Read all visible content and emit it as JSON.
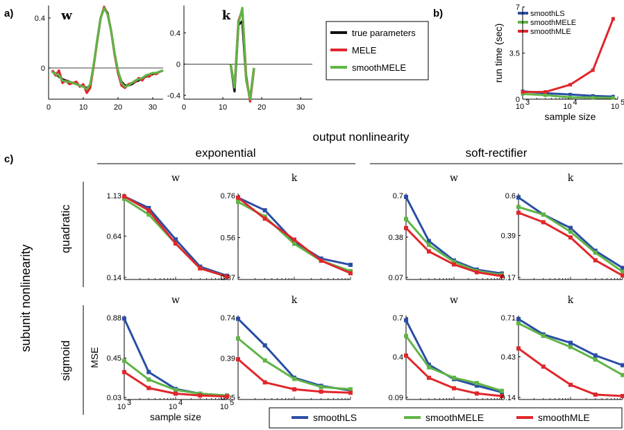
{
  "panel_labels": {
    "a": "a)",
    "b": "b)",
    "c": "c)"
  },
  "colors": {
    "smoothLS": "#2a4ea6",
    "smoothMELE": "#5fb446",
    "smoothMLE": "#e0262b",
    "MELE": "#e0262b",
    "true": "#111111"
  },
  "section_titles": {
    "output": "output nonlinearity",
    "exponential": "exponential",
    "softrect": "soft-rectifier",
    "subunit": "subunit nonlinearity",
    "quadratic": "quadratic",
    "sigmoid": "sigmoid"
  },
  "chart_data": [
    {
      "id": "a-w",
      "type": "line",
      "title": "w",
      "xlim": [
        0,
        33
      ],
      "ylim": [
        -0.25,
        0.5
      ],
      "xticks": [
        0,
        10,
        20,
        30
      ],
      "yticks": [
        0,
        0.4
      ],
      "ytick_labels": [
        "0",
        "0.4"
      ],
      "x": [
        1,
        2,
        3,
        4,
        5,
        6,
        7,
        8,
        9,
        10,
        11,
        12,
        13,
        14,
        15,
        16,
        17,
        18,
        19,
        20,
        21,
        22,
        23,
        24,
        25,
        26,
        27,
        28,
        29,
        30,
        31,
        32,
        33
      ],
      "series": [
        {
          "name": "true parameters",
          "values": [
            -0.02,
            -0.05,
            -0.07,
            -0.09,
            -0.1,
            -0.11,
            -0.12,
            -0.13,
            -0.14,
            -0.15,
            -0.16,
            -0.14,
            0.02,
            0.22,
            0.4,
            0.48,
            0.44,
            0.3,
            0.12,
            -0.03,
            -0.11,
            -0.14,
            -0.14,
            -0.13,
            -0.11,
            -0.1,
            -0.08,
            -0.07,
            -0.06,
            -0.05,
            -0.04,
            -0.03,
            -0.02
          ]
        },
        {
          "name": "MELE",
          "values": [
            -0.02,
            -0.06,
            -0.02,
            -0.12,
            -0.1,
            -0.13,
            -0.12,
            -0.11,
            -0.15,
            -0.13,
            -0.2,
            -0.16,
            0.02,
            0.21,
            0.4,
            0.49,
            0.43,
            0.3,
            0.11,
            -0.04,
            -0.14,
            -0.16,
            -0.13,
            -0.12,
            -0.11,
            -0.08,
            -0.1,
            -0.06,
            -0.07,
            -0.04,
            -0.05,
            -0.03,
            -0.02
          ]
        },
        {
          "name": "smoothMELE",
          "values": [
            -0.03,
            -0.05,
            -0.06,
            -0.1,
            -0.11,
            -0.11,
            -0.12,
            -0.13,
            -0.14,
            -0.15,
            -0.17,
            -0.13,
            0.03,
            0.22,
            0.4,
            0.48,
            0.43,
            0.3,
            0.12,
            -0.02,
            -0.12,
            -0.15,
            -0.14,
            -0.12,
            -0.1,
            -0.09,
            -0.08,
            -0.06,
            -0.05,
            -0.04,
            -0.04,
            -0.03,
            -0.02
          ]
        }
      ],
      "legend": {
        "entries": [
          "true parameters",
          "MELE",
          "smoothMELE"
        ]
      }
    },
    {
      "id": "a-k",
      "type": "line",
      "title": "k",
      "xlim": [
        0,
        33
      ],
      "ylim": [
        -0.45,
        0.75
      ],
      "xticks": [
        0,
        10,
        20,
        30
      ],
      "yticks": [
        -0.4,
        0,
        0.4
      ],
      "ytick_labels": [
        "-0.4",
        "0",
        "0.4"
      ],
      "x": [
        12,
        13,
        14,
        15,
        16,
        17,
        18
      ],
      "series": [
        {
          "name": "true parameters",
          "values": [
            0.0,
            -0.35,
            0.5,
            0.55,
            -0.2,
            -0.45,
            -0.05
          ]
        },
        {
          "name": "MELE",
          "values": [
            0.0,
            -0.3,
            0.55,
            0.7,
            -0.15,
            -0.48,
            -0.07
          ]
        },
        {
          "name": "smoothMELE",
          "values": [
            0.0,
            -0.3,
            0.52,
            0.72,
            -0.2,
            -0.45,
            -0.05
          ]
        }
      ]
    },
    {
      "id": "b",
      "type": "line",
      "xlabel": "sample size",
      "ylabel": "run time (sec)",
      "xscale": "log",
      "xlim": [
        1000,
        100000
      ],
      "ylim": [
        0,
        7
      ],
      "x": [
        1000,
        3000,
        10000,
        30000,
        80000
      ],
      "yticks": [
        0,
        3.5,
        7
      ],
      "ytick_labels": [
        "0",
        "3.5",
        "7"
      ],
      "series": [
        {
          "name": "smoothLS",
          "values": [
            0.6,
            0.45,
            0.35,
            0.25,
            0.2
          ]
        },
        {
          "name": "smoothMELE",
          "values": [
            0.4,
            0.3,
            0.15,
            0.12,
            0.1
          ]
        },
        {
          "name": "smoothMLE",
          "values": [
            0.55,
            0.55,
            1.1,
            2.2,
            6.1
          ]
        }
      ],
      "legend": {
        "entries": [
          "smoothLS",
          "smoothMELE",
          "smoothMLE"
        ],
        "placement": "top-left"
      }
    },
    {
      "id": "quad-exp-w",
      "type": "line",
      "title": "w",
      "xscale": "log",
      "x": [
        1000,
        3000,
        10000,
        30000,
        100000
      ],
      "yticks": [
        0.14,
        0.64,
        1.13
      ],
      "ytick_labels": [
        "0.14",
        "0.64",
        "1.13"
      ],
      "ylim": [
        0.14,
        1.13
      ],
      "series": [
        {
          "name": "smoothLS",
          "values": [
            1.12,
            0.98,
            0.6,
            0.27,
            0.16
          ]
        },
        {
          "name": "smoothMELE",
          "values": [
            1.09,
            0.9,
            0.55,
            0.25,
            0.15
          ]
        },
        {
          "name": "smoothMLE",
          "values": [
            1.12,
            0.95,
            0.55,
            0.25,
            0.15
          ]
        }
      ]
    },
    {
      "id": "quad-exp-k",
      "type": "line",
      "title": "k",
      "xscale": "log",
      "x": [
        1000,
        3000,
        10000,
        30000,
        100000
      ],
      "yticks": [
        0.37,
        0.56,
        0.76
      ],
      "ytick_labels": [
        "0.37",
        "0.56",
        "0.76"
      ],
      "ylim": [
        0.37,
        0.76
      ],
      "series": [
        {
          "name": "smoothLS",
          "values": [
            0.75,
            0.69,
            0.54,
            0.46,
            0.43
          ]
        },
        {
          "name": "smoothMELE",
          "values": [
            0.73,
            0.66,
            0.53,
            0.45,
            0.4
          ]
        },
        {
          "name": "smoothMLE",
          "values": [
            0.75,
            0.65,
            0.55,
            0.45,
            0.39
          ]
        }
      ]
    },
    {
      "id": "quad-soft-w",
      "type": "line",
      "title": "w",
      "xscale": "log",
      "x": [
        1000,
        3000,
        10000,
        30000,
        100000
      ],
      "yticks": [
        0.07,
        0.38,
        0.7
      ],
      "ytick_labels": [
        "0.07",
        "0.38",
        "0.7"
      ],
      "ylim": [
        0.07,
        0.7
      ],
      "series": [
        {
          "name": "smoothLS",
          "values": [
            0.69,
            0.35,
            0.2,
            0.13,
            0.1
          ]
        },
        {
          "name": "smoothMELE",
          "values": [
            0.52,
            0.32,
            0.19,
            0.12,
            0.09
          ]
        },
        {
          "name": "smoothMLE",
          "values": [
            0.45,
            0.27,
            0.17,
            0.11,
            0.08
          ]
        }
      ]
    },
    {
      "id": "quad-soft-k",
      "type": "line",
      "title": "k",
      "xscale": "log",
      "x": [
        1000,
        3000,
        10000,
        30000,
        100000
      ],
      "yticks": [
        0.17,
        0.39,
        0.6
      ],
      "ytick_labels": [
        "0.17",
        "0.39",
        "0.6"
      ],
      "ylim": [
        0.17,
        0.6
      ],
      "series": [
        {
          "name": "smoothLS",
          "values": [
            0.59,
            0.5,
            0.43,
            0.31,
            0.22
          ]
        },
        {
          "name": "smoothMELE",
          "values": [
            0.54,
            0.5,
            0.41,
            0.3,
            0.2
          ]
        },
        {
          "name": "smoothMLE",
          "values": [
            0.51,
            0.46,
            0.38,
            0.26,
            0.18
          ]
        }
      ]
    },
    {
      "id": "sig-exp-w",
      "type": "line",
      "title": "w",
      "xscale": "log",
      "xlabel": "sample size",
      "ylabel": "MSE",
      "x": [
        1000,
        3000,
        10000,
        30000,
        100000
      ],
      "yticks": [
        0.03,
        0.45,
        0.88
      ],
      "ytick_labels": [
        "0.03",
        "0.45",
        "0.88"
      ],
      "ylim": [
        0.03,
        0.88
      ],
      "series": [
        {
          "name": "smoothLS",
          "values": [
            0.87,
            0.3,
            0.12,
            0.07,
            0.05
          ]
        },
        {
          "name": "smoothMELE",
          "values": [
            0.42,
            0.22,
            0.11,
            0.07,
            0.05
          ]
        },
        {
          "name": "smoothMLE",
          "values": [
            0.3,
            0.13,
            0.07,
            0.05,
            0.04
          ]
        }
      ]
    },
    {
      "id": "sig-exp-k",
      "type": "line",
      "title": "k",
      "xscale": "log",
      "x": [
        1000,
        3000,
        10000,
        30000,
        100000
      ],
      "yticks": [
        0.05,
        0.39,
        0.74
      ],
      "ytick_labels": [
        "0.05",
        "0.39",
        "0.74"
      ],
      "ylim": [
        0.05,
        0.74
      ],
      "series": [
        {
          "name": "smoothLS",
          "values": [
            0.73,
            0.5,
            0.22,
            0.15,
            0.11
          ]
        },
        {
          "name": "smoothMELE",
          "values": [
            0.56,
            0.37,
            0.21,
            0.14,
            0.12
          ]
        },
        {
          "name": "smoothMLE",
          "values": [
            0.38,
            0.18,
            0.12,
            0.1,
            0.09
          ]
        }
      ]
    },
    {
      "id": "sig-soft-w",
      "type": "line",
      "title": "w",
      "xscale": "log",
      "x": [
        1000,
        3000,
        10000,
        30000,
        100000
      ],
      "yticks": [
        0.09,
        0.4,
        0.7
      ],
      "ytick_labels": [
        "0.09",
        "0.4",
        "0.7"
      ],
      "ylim": [
        0.09,
        0.7
      ],
      "series": [
        {
          "name": "smoothLS",
          "values": [
            0.68,
            0.34,
            0.23,
            0.18,
            0.13
          ]
        },
        {
          "name": "smoothMELE",
          "values": [
            0.56,
            0.32,
            0.24,
            0.2,
            0.14
          ]
        },
        {
          "name": "smoothMLE",
          "values": [
            0.41,
            0.24,
            0.16,
            0.12,
            0.1
          ]
        }
      ]
    },
    {
      "id": "sig-soft-k",
      "type": "line",
      "title": "k",
      "xscale": "log",
      "x": [
        1000,
        3000,
        10000,
        30000,
        100000
      ],
      "yticks": [
        0.14,
        0.43,
        0.71
      ],
      "ytick_labels": [
        "0.14",
        "0.43",
        "0.71"
      ],
      "ylim": [
        0.14,
        0.71
      ],
      "series": [
        {
          "name": "smoothLS",
          "values": [
            0.7,
            0.59,
            0.53,
            0.44,
            0.37
          ]
        },
        {
          "name": "smoothMELE",
          "values": [
            0.67,
            0.58,
            0.5,
            0.41,
            0.3
          ]
        },
        {
          "name": "smoothMLE",
          "values": [
            0.49,
            0.36,
            0.23,
            0.16,
            0.15
          ]
        }
      ]
    }
  ],
  "bottom_legend": {
    "entries": [
      "smoothLS",
      "smoothMELE",
      "smoothMLE"
    ]
  }
}
